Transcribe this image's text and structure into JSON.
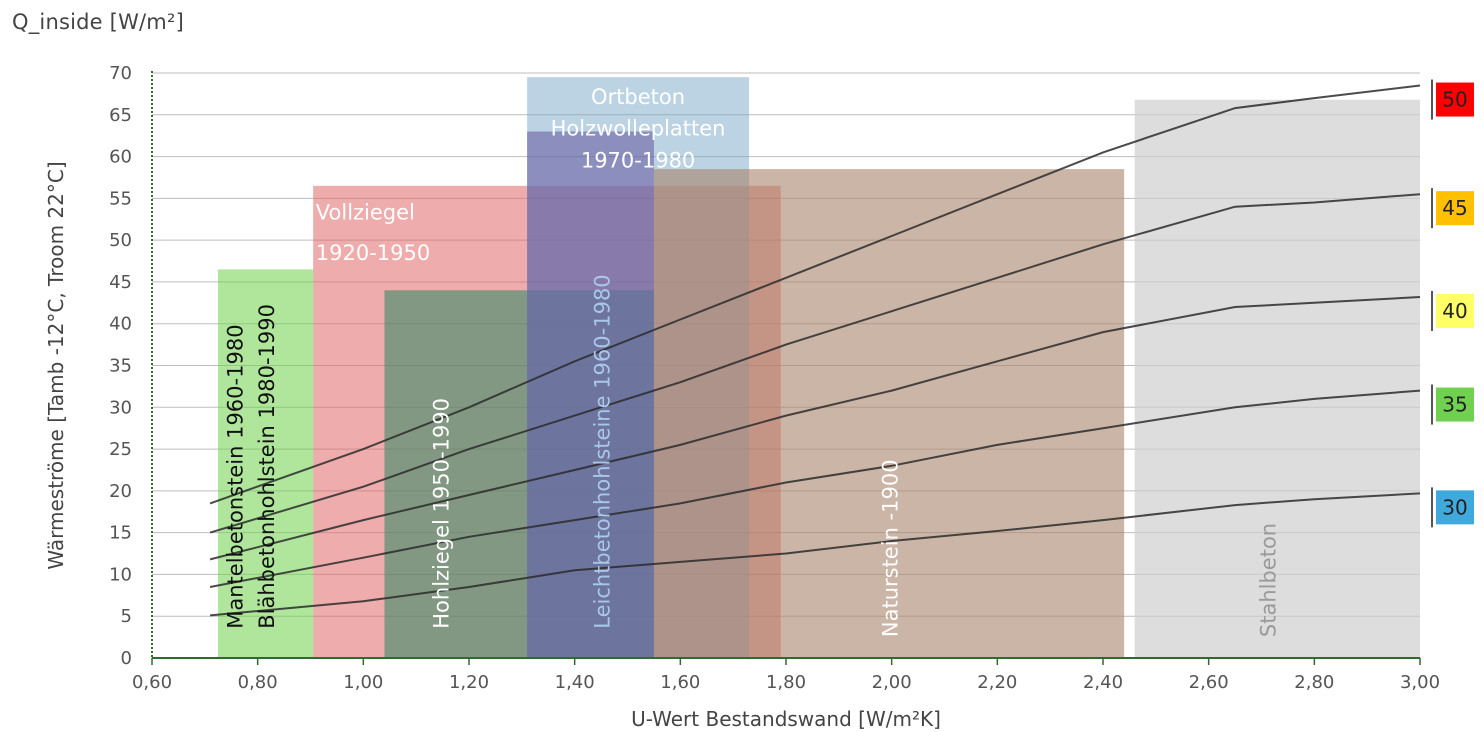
{
  "chart_data": {
    "type": "line",
    "unit_label": "Q_inside [W/m²]",
    "xlabel": "U-Wert Bestandswand [W/m²K]",
    "ylabel": "Wärmeströme [Tamb -12°C, Troom 22°C]",
    "xlim": [
      0.6,
      3.0
    ],
    "ylim": [
      0,
      70
    ],
    "x_ticks": [
      0.6,
      0.8,
      1.0,
      1.2,
      1.4,
      1.6,
      1.8,
      2.0,
      2.2,
      2.4,
      2.6,
      2.8,
      3.0
    ],
    "x_tick_labels": [
      "0,60",
      "0,80",
      "1,00",
      "1,20",
      "1,40",
      "1,60",
      "1,80",
      "2,00",
      "2,20",
      "2,40",
      "2,60",
      "2,80",
      "3,00"
    ],
    "y_ticks": [
      0,
      5,
      10,
      15,
      20,
      25,
      30,
      35,
      40,
      45,
      50,
      55,
      60,
      65,
      70
    ],
    "grid": true,
    "series": [
      {
        "name": "50",
        "color": "#ff0000",
        "points": [
          [
            0.71,
            18.5
          ],
          [
            1.0,
            25
          ],
          [
            1.2,
            30
          ],
          [
            1.4,
            35.5
          ],
          [
            1.6,
            40.5
          ],
          [
            1.8,
            45.5
          ],
          [
            2.0,
            50.5
          ],
          [
            2.2,
            55.5
          ],
          [
            2.4,
            60.5
          ],
          [
            2.65,
            65.8
          ],
          [
            2.8,
            67
          ],
          [
            3.0,
            68.5
          ]
        ]
      },
      {
        "name": "45",
        "color": "#ffc000",
        "points": [
          [
            0.71,
            15
          ],
          [
            1.0,
            20.5
          ],
          [
            1.2,
            25
          ],
          [
            1.4,
            29
          ],
          [
            1.6,
            33
          ],
          [
            1.8,
            37.5
          ],
          [
            2.0,
            41.5
          ],
          [
            2.2,
            45.5
          ],
          [
            2.4,
            49.5
          ],
          [
            2.65,
            54
          ],
          [
            2.8,
            54.5
          ],
          [
            3.0,
            55.5
          ]
        ]
      },
      {
        "name": "40",
        "color": "#ffff66",
        "points": [
          [
            0.71,
            11.8
          ],
          [
            1.0,
            16.5
          ],
          [
            1.2,
            19.5
          ],
          [
            1.4,
            22.5
          ],
          [
            1.6,
            25.5
          ],
          [
            1.8,
            29
          ],
          [
            2.0,
            32
          ],
          [
            2.2,
            35.5
          ],
          [
            2.4,
            39
          ],
          [
            2.65,
            42
          ],
          [
            2.8,
            42.5
          ],
          [
            3.0,
            43.2
          ]
        ]
      },
      {
        "name": "35",
        "color": "#70d150",
        "points": [
          [
            0.71,
            8.5
          ],
          [
            1.0,
            12
          ],
          [
            1.2,
            14.5
          ],
          [
            1.4,
            16.5
          ],
          [
            1.6,
            18.5
          ],
          [
            1.8,
            21
          ],
          [
            2.0,
            23
          ],
          [
            2.2,
            25.5
          ],
          [
            2.4,
            27.5
          ],
          [
            2.65,
            30
          ],
          [
            2.8,
            31
          ],
          [
            3.0,
            32
          ]
        ]
      },
      {
        "name": "30",
        "color": "#3fa9dd",
        "points": [
          [
            0.71,
            5.1
          ],
          [
            1.0,
            6.8
          ],
          [
            1.2,
            8.5
          ],
          [
            1.4,
            10.5
          ],
          [
            1.6,
            11.5
          ],
          [
            1.8,
            12.5
          ],
          [
            2.0,
            14
          ],
          [
            2.2,
            15.2
          ],
          [
            2.4,
            16.5
          ],
          [
            2.65,
            18.3
          ],
          [
            2.8,
            19
          ],
          [
            3.0,
            19.7
          ]
        ]
      }
    ],
    "regions": [
      {
        "label": "Mantelbetonstein 1960-1980",
        "x": [
          0.725,
          0.905
        ],
        "y": [
          0,
          46.5
        ],
        "color": "#6dd148",
        "opacity": 0.55,
        "text_color": "#111111",
        "orientation": "vertical"
      },
      {
        "label": "Blähbetonhohlstein 1980-1990",
        "x": [
          0.725,
          0.905
        ],
        "y": [
          0,
          46.5
        ],
        "color": "#6dd148",
        "opacity": 0.0,
        "text_color": "#111111",
        "orientation": "vertical"
      },
      {
        "label": "Vollziegel 1920-1950",
        "x": [
          0.905,
          1.79
        ],
        "y": [
          0,
          56.5
        ],
        "color": "#e06868",
        "opacity": 0.55,
        "text_color": "#ffffff",
        "orientation": "horizontal"
      },
      {
        "label": "Hohlziegel 1950-1990",
        "x": [
          1.04,
          1.55
        ],
        "y": [
          0,
          44
        ],
        "color": "#3c8a65",
        "opacity": 0.6,
        "text_color": "#ffffff",
        "orientation": "vertical"
      },
      {
        "label": "Ortbeton Holzwolleplatten 1970-1980",
        "x": [
          1.31,
          1.73
        ],
        "y": [
          0,
          69.5
        ],
        "color": "#7aa7c7",
        "opacity": 0.5,
        "text_color": "#ffffff",
        "orientation": "horizontal"
      },
      {
        "label": "Leichtbetonhohlsteine 1960-1980",
        "x": [
          1.31,
          1.55
        ],
        "y": [
          0,
          63
        ],
        "color": "#5b4a99",
        "opacity": 0.5,
        "text_color": "#a9c7e6",
        "orientation": "vertical"
      },
      {
        "label": "Naturstein -1900",
        "x": [
          1.55,
          2.44
        ],
        "y": [
          0,
          58.5
        ],
        "color": "#a8846a",
        "opacity": 0.6,
        "text_color": "#ffffff",
        "orientation": "vertical"
      },
      {
        "label": "Stahlbeton",
        "x": [
          2.46,
          3.0
        ],
        "y": [
          0,
          66.8
        ],
        "color": "#cfcfcf",
        "opacity": 0.7,
        "text_color": "#9a9a9a",
        "orientation": "vertical"
      }
    ]
  }
}
